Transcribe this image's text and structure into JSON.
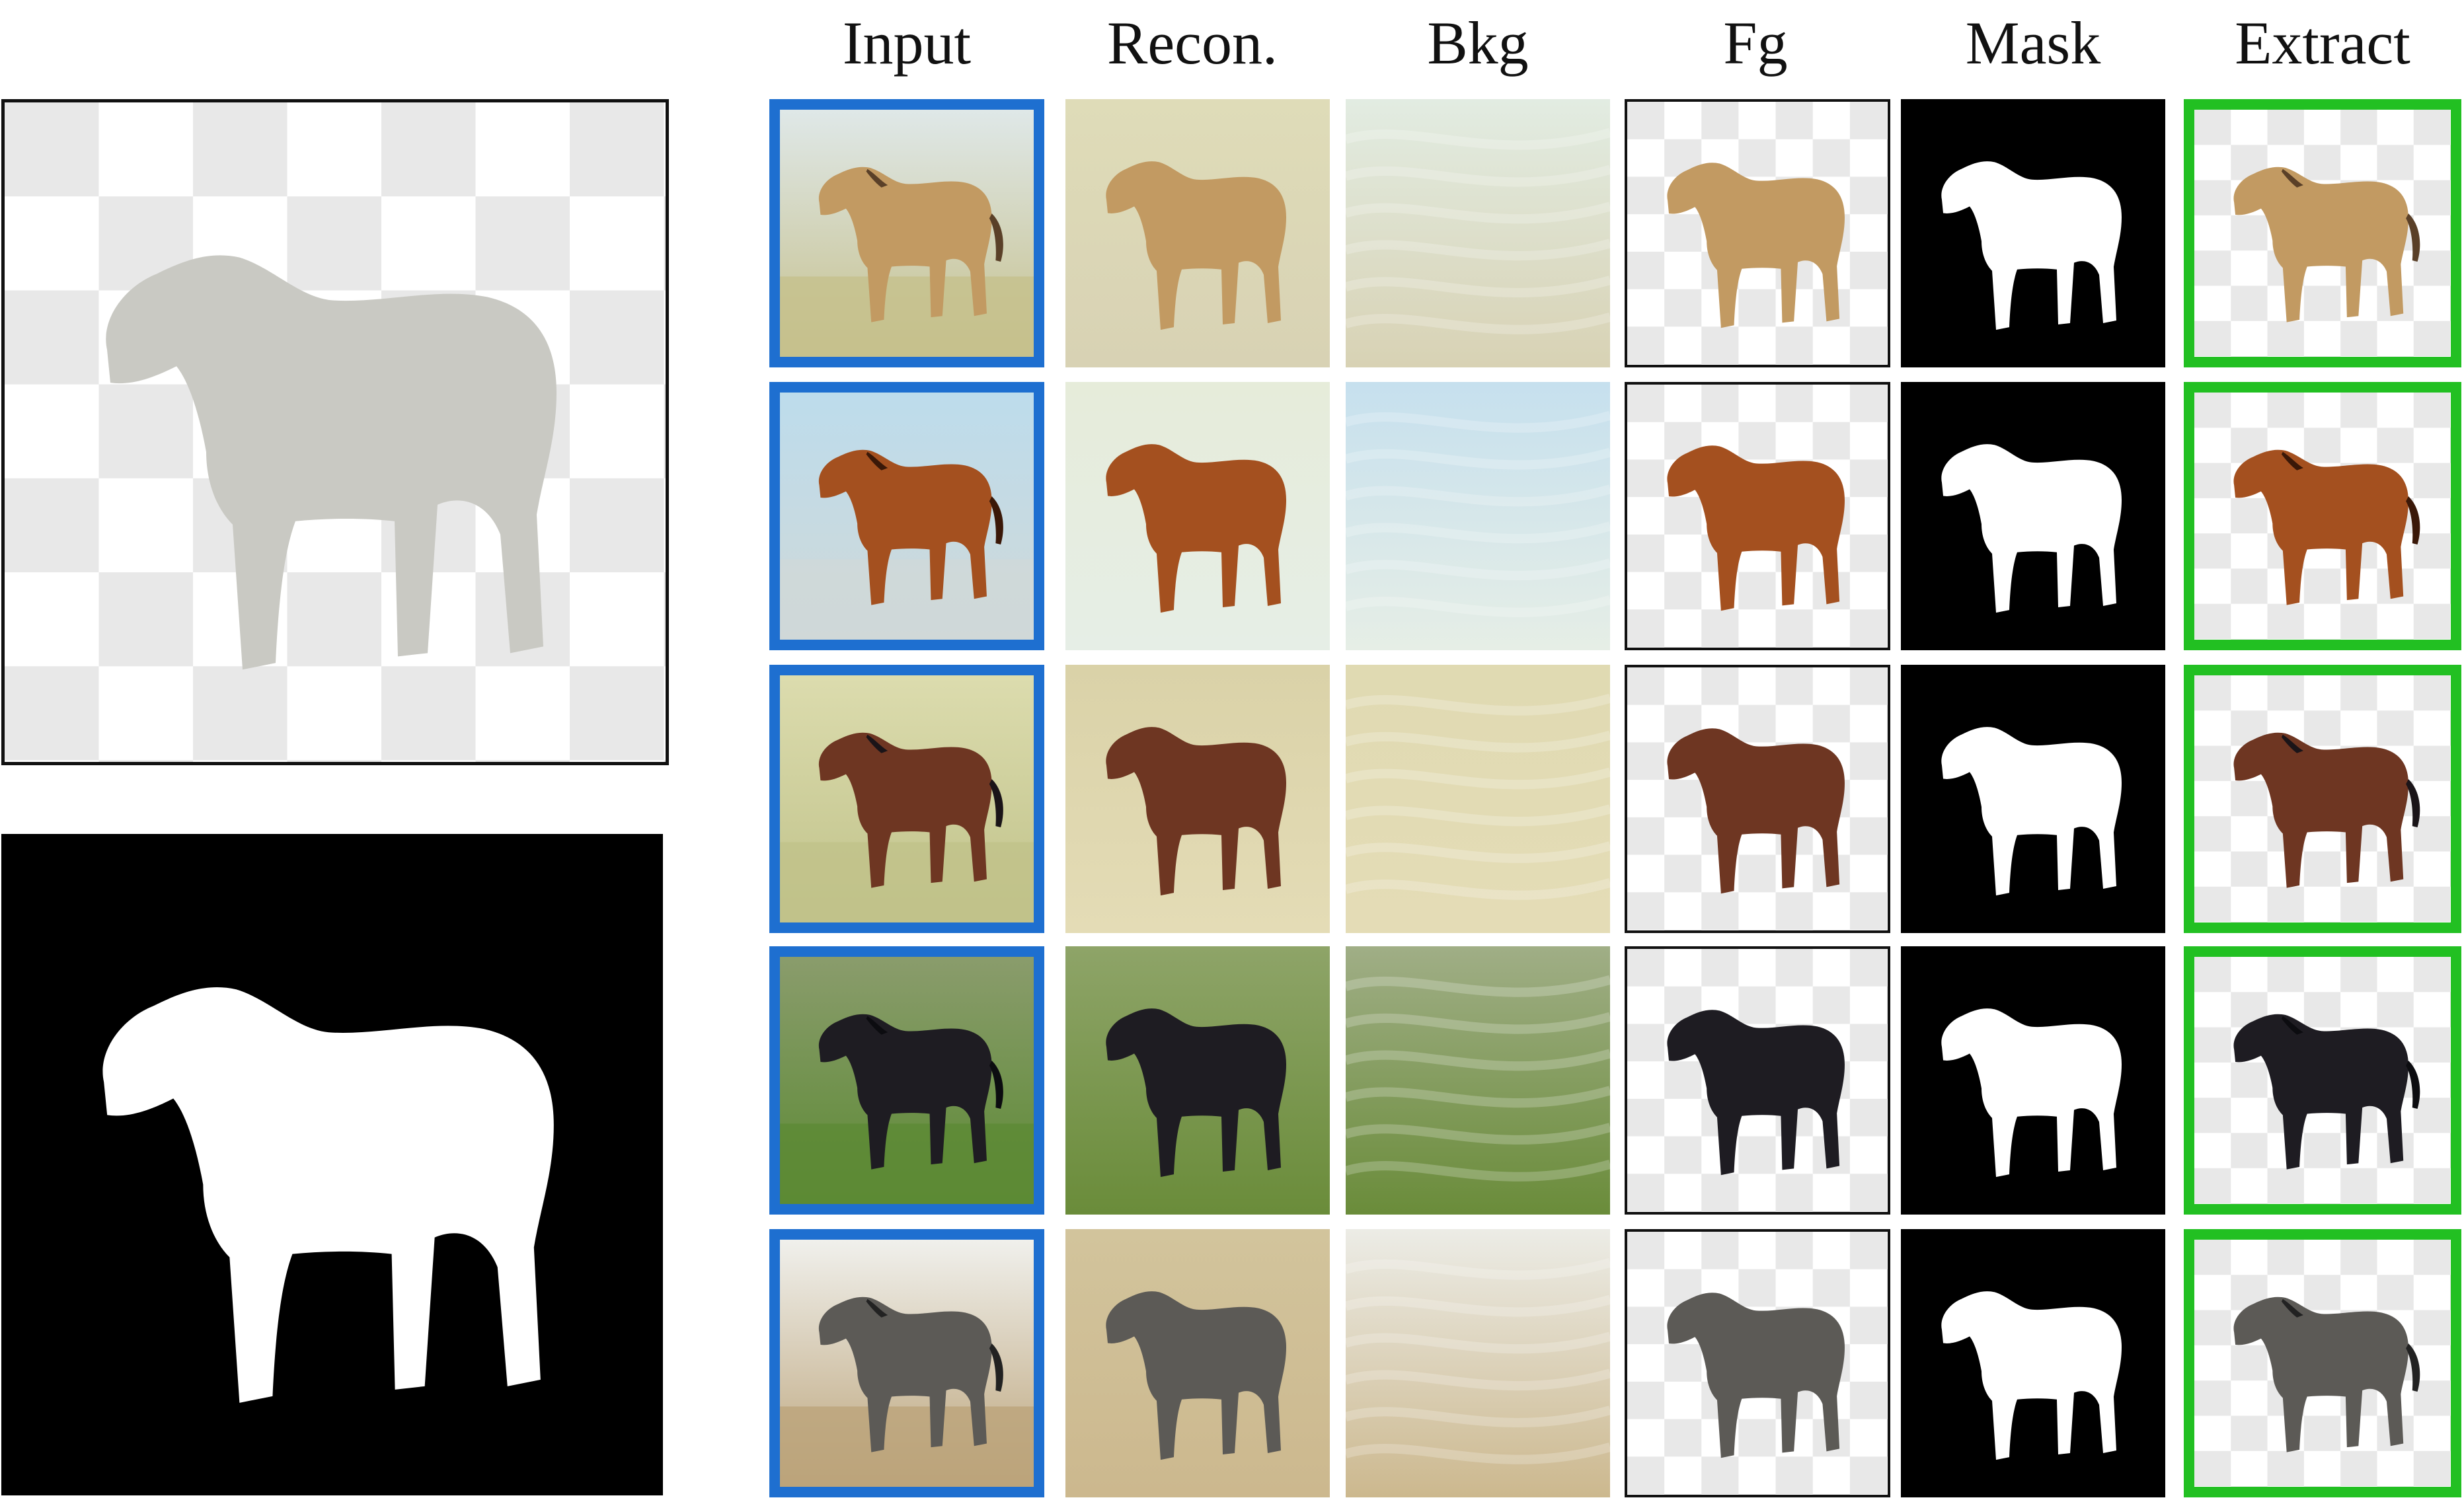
{
  "columns": [
    "Input",
    "Recon.",
    "Bkg",
    "Fg",
    "Mask",
    "Extract"
  ],
  "rows": [
    {
      "name": "buckskin",
      "coat": "#c29a62",
      "dark": "#5a4028",
      "sky": "#dfe8e8",
      "ground": "#c6c08c",
      "recon_bg": "#dfdcb8",
      "bkg_top": "#e2ece2",
      "bkg_bottom": "#d8d2b4"
    },
    {
      "name": "chestnut",
      "coat": "#a4501f",
      "dark": "#3a1808",
      "sky": "#bddcec",
      "ground": "#cfd8d8",
      "recon_bg": "#e6ecda",
      "bkg_top": "#c6e0ee",
      "bkg_bottom": "#e6eee6"
    },
    {
      "name": "bay",
      "coat": "#6e3622",
      "dark": "#1a1418",
      "sky": "#dcdcae",
      "ground": "#c0c28a",
      "recon_bg": "#dad2a8",
      "bkg_top": "#e0dab2",
      "bkg_bottom": "#e4dcb6"
    },
    {
      "name": "black",
      "coat": "#1e1c22",
      "dark": "#0c0c10",
      "sky": "#8a9c6c",
      "ground": "#5c8a34",
      "recon_bg": "#8ea468",
      "bkg_top": "#a0ae86",
      "bkg_bottom": "#6a8c3a"
    },
    {
      "name": "grey",
      "coat": "#5c5a56",
      "dark": "#222222",
      "sky": "#f0f0ec",
      "ground": "#bca47a",
      "recon_bg": "#d2c49c",
      "bkg_top": "#ecece6",
      "bkg_bottom": "#ccb88e"
    }
  ],
  "colors": {
    "input_border": "#1e6fd0",
    "extract_border": "#22c022",
    "checker": "#e8e8e8",
    "big_coat": "#c9c9c3"
  }
}
